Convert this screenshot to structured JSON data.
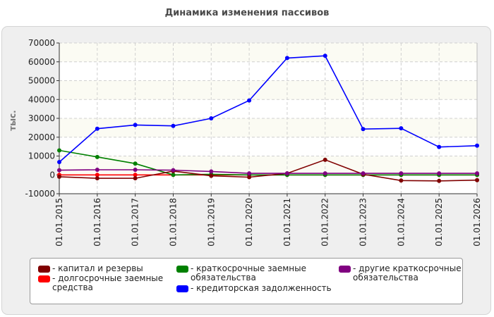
{
  "chart_data": {
    "type": "line",
    "title": "Динамика изменения пассивов",
    "ylabel": "тыс.",
    "xlabel": "",
    "categories": [
      "01.01.2015",
      "01.01.2016",
      "01.01.2017",
      "01.01.2018",
      "01.01.2019",
      "01.01.2020",
      "01.01.2021",
      "01.01.2022",
      "01.01.2023",
      "01.01.2024",
      "01.01.2025",
      "01.01.2026"
    ],
    "yticks": [
      "70000",
      "60000",
      "50000",
      "40000",
      "30000",
      "20000",
      "10000",
      "0",
      "-10000"
    ],
    "ylim": [
      -10000,
      70000
    ],
    "grid": true,
    "legend_position": "bottom",
    "series": [
      {
        "name": "капитал и резервы",
        "color": "#800000",
        "values": [
          -1000,
          -1800,
          -1800,
          2000,
          -500,
          -1200,
          800,
          8000,
          300,
          -3000,
          -3200,
          -2800
        ]
      },
      {
        "name": "долгосрочные заемные\nсредства",
        "color": "#ff0000",
        "values": [
          0,
          0,
          0,
          0,
          0,
          0,
          0,
          0,
          0,
          0,
          0,
          0
        ]
      },
      {
        "name": "краткосрочные заемные\nобязательства",
        "color": "#008000",
        "values": [
          13000,
          9500,
          6000,
          0,
          300,
          0,
          0,
          0,
          0,
          0,
          0,
          0
        ]
      },
      {
        "name": "кредиторская задолженность",
        "color": "#0000ff",
        "values": [
          6800,
          24500,
          26500,
          26000,
          30000,
          39500,
          62000,
          63200,
          24300,
          24700,
          14800,
          15500
        ]
      },
      {
        "name": "другие краткосрочные\nобязательства",
        "color": "#800080",
        "values": [
          2500,
          2700,
          2700,
          2500,
          1800,
          800,
          800,
          800,
          800,
          800,
          800,
          800
        ]
      }
    ]
  }
}
